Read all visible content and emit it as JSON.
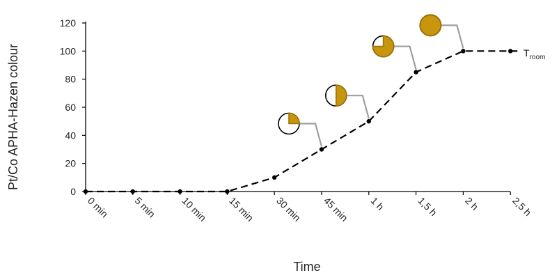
{
  "chart_data": {
    "type": "line",
    "xlabel": "Time",
    "ylabel": "Pt/Co APHA-Hazen colour",
    "categories": [
      "0 min",
      "5 min",
      "10 min",
      "15 min",
      "30 min",
      "45 min",
      "1 h",
      "1,5 h",
      "2 h",
      "2,5 h"
    ],
    "ylim": [
      0,
      120
    ],
    "yticks": [
      0,
      20,
      40,
      60,
      80,
      100,
      120
    ],
    "grid": false,
    "series": [
      {
        "name": "T",
        "name_subscript": "room",
        "values": [
          0,
          0,
          0,
          0,
          10,
          30,
          50,
          85,
          100,
          100
        ]
      }
    ],
    "colour_indicators": [
      {
        "category": "45 min",
        "fill_fraction": 0.25
      },
      {
        "category": "1 h",
        "fill_fraction": 0.5
      },
      {
        "category": "1,5 h",
        "fill_fraction": 0.75
      },
      {
        "category": "2 h",
        "fill_fraction": 1.0
      }
    ],
    "colors": {
      "line": "#000000",
      "indicator_fill": "#c8960c",
      "indicator_stroke": "#9a7008",
      "leader": "#9e9e9e"
    }
  }
}
